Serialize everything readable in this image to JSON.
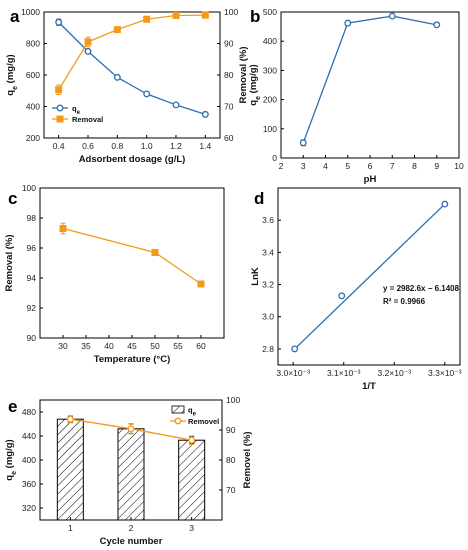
{
  "colors": {
    "blue": "#2f6db3",
    "orange": "#f39a1c",
    "axis": "#000000"
  },
  "chart_data": [
    {
      "panel": "a",
      "type": "line",
      "xlabel": "Adsorbent dosage (g/L)",
      "ylabel_left": "qe (mg/g)",
      "ylabel_right": "Removal (%)",
      "xlim": [
        0.3,
        1.5
      ],
      "ylim_left": [
        200,
        1000
      ],
      "ylim_right": [
        60,
        100
      ],
      "x_ticks": [
        "0.4",
        "0.6",
        "0.8",
        "1.0",
        "1.2",
        "1.4"
      ],
      "y_ticks_left": [
        "200",
        "400",
        "600",
        "800",
        "1000"
      ],
      "y_ticks_right": [
        "60",
        "70",
        "80",
        "90",
        "100"
      ],
      "legend": {
        "position": "bottom-left",
        "entries": [
          "qe",
          "Removal"
        ]
      },
      "series": [
        {
          "name": "qe",
          "axis": "left",
          "marker": "circle",
          "x": [
            0.4,
            0.6,
            0.8,
            1.0,
            1.2,
            1.4
          ],
          "values": [
            935,
            750,
            585,
            480,
            410,
            350
          ],
          "error": [
            20,
            10,
            5,
            5,
            5,
            5
          ]
        },
        {
          "name": "Removal",
          "axis": "right",
          "marker": "square",
          "x": [
            0.4,
            0.6,
            0.8,
            1.0,
            1.2,
            1.4
          ],
          "values": [
            75.3,
            90.5,
            94.4,
            97.7,
            98.9,
            99.0
          ],
          "error": [
            1.5,
            1.5,
            0.3,
            0.3,
            0.3,
            0.3
          ]
        }
      ]
    },
    {
      "panel": "b",
      "type": "line",
      "xlabel": "pH",
      "ylabel": "qe (mg/g)",
      "xlim": [
        2,
        10
      ],
      "ylim": [
        0,
        500
      ],
      "x_ticks": [
        "2",
        "3",
        "4",
        "5",
        "6",
        "7",
        "8",
        "9",
        "10"
      ],
      "y_ticks": [
        "0",
        "100",
        "200",
        "300",
        "400",
        "500"
      ],
      "series": [
        {
          "marker": "circle",
          "x": [
            3,
            5,
            7,
            9
          ],
          "values": [
            52,
            462,
            486,
            456
          ],
          "error": [
            10,
            8,
            4,
            6
          ]
        }
      ]
    },
    {
      "panel": "c",
      "type": "line",
      "xlabel": "Temperature (°C)",
      "ylabel": "Removal (%)",
      "xlim": [
        25,
        65
      ],
      "ylim": [
        90,
        100
      ],
      "x_ticks": [
        "30",
        "35",
        "40",
        "45",
        "50",
        "55",
        "60"
      ],
      "y_ticks": [
        "90",
        "92",
        "94",
        "96",
        "98",
        "100"
      ],
      "series": [
        {
          "marker": "square",
          "x": [
            30,
            50,
            60
          ],
          "values": [
            97.3,
            95.7,
            93.6
          ],
          "error": [
            0.35,
            0.05,
            0.05
          ]
        }
      ]
    },
    {
      "panel": "d",
      "type": "scatter",
      "xlabel": "1/T",
      "ylabel": "LnK",
      "xlim": [
        0.00297,
        0.00333
      ],
      "ylim": [
        2.7,
        3.8
      ],
      "x_ticks": [
        "3.0×10⁻³",
        "3.1×10⁻³",
        "3.2×10⁻³",
        "3.3×10⁻³"
      ],
      "y_ticks": [
        "2.8",
        "3.0",
        "3.2",
        "3.4",
        "3.6"
      ],
      "annotation": [
        "y = 2982.6x − 6.1408",
        "R² = 0.9966"
      ],
      "series": [
        {
          "marker": "circle",
          "x": [
            0.003003,
            0.003096,
            0.0033
          ],
          "values": [
            2.8,
            3.13,
            3.7
          ]
        }
      ]
    },
    {
      "panel": "e",
      "type": "bar",
      "xlabel": "Cycle number",
      "ylabel_left": "qe (mg/g)",
      "ylabel_right": "Removel (%)",
      "categories": [
        "1",
        "2",
        "3"
      ],
      "ylim_left": [
        300,
        500
      ],
      "ylim_right": [
        60,
        100
      ],
      "y_ticks_left": [
        "320",
        "360",
        "400",
        "440",
        "480"
      ],
      "y_ticks_right": [
        "70",
        "80",
        "90",
        "100"
      ],
      "legend": {
        "position": "top-right",
        "entries": [
          "qe",
          "Removel"
        ]
      },
      "series": [
        {
          "name": "qe",
          "type": "bar",
          "axis": "left",
          "values": [
            468,
            452,
            433
          ],
          "error": [
            5,
            8,
            6
          ]
        },
        {
          "name": "Removel",
          "type": "line",
          "axis": "right",
          "marker": "circle",
          "values": [
            93.6,
            90.4,
            86.6
          ],
          "error": [
            1.2,
            1.5,
            1.4
          ]
        }
      ]
    }
  ]
}
